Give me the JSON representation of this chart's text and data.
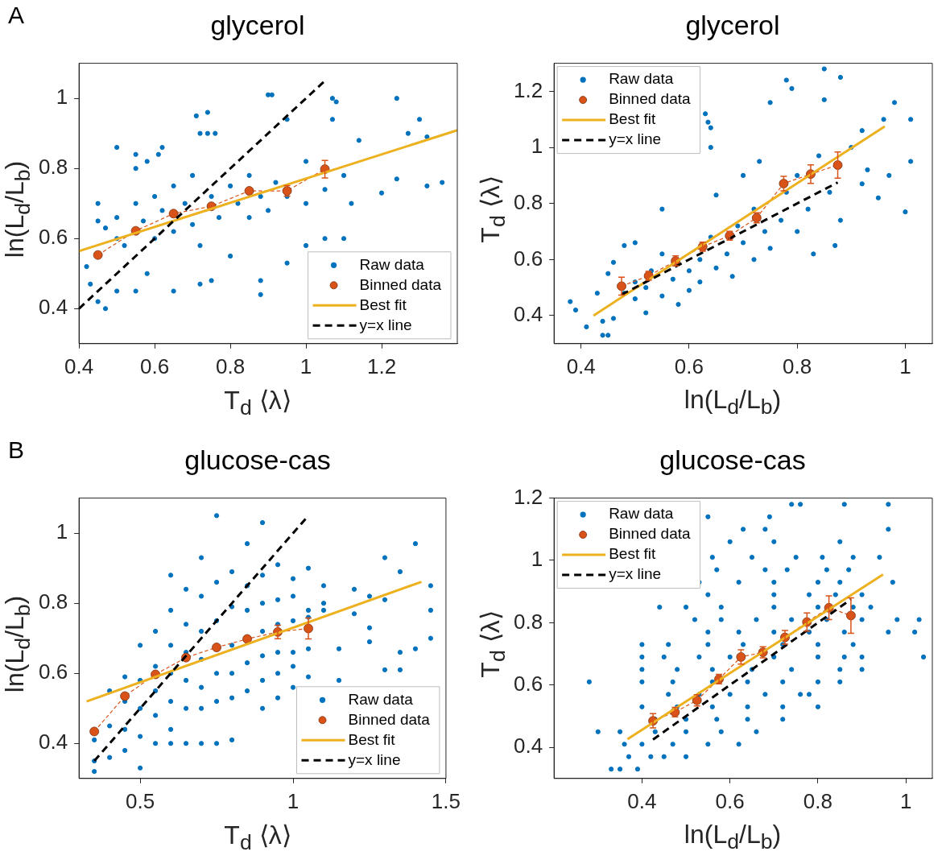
{
  "chart_data": [
    {
      "type": "scatter",
      "title": "glycerol",
      "xlabel": "T$_{d}$ ⟨λ⟩",
      "ylabel": "ln(L$_{d}$/L$_{b}$)",
      "xlim": [
        0.4,
        1.4
      ],
      "ylim": [
        0.3,
        1.1
      ],
      "xticks": [
        0.4,
        0.6,
        0.8,
        1,
        1.2
      ],
      "yticks": [
        0.4,
        0.6,
        0.8,
        1
      ],
      "legend": "bottom right",
      "annotations": [
        "A"
      ],
      "series": [
        {
          "name": "Raw data",
          "type": "scatter",
          "color": "#0072bd",
          "marker": "circle",
          "x": [
            0.9,
            0.91,
            1.07,
            1.08,
            1.24,
            0.71,
            0.74,
            0.95,
            1.07,
            1.3,
            1.14,
            1.32,
            1.27,
            1.36,
            1.32,
            1.24,
            0.72,
            0.74,
            0.76,
            0.62,
            0.61,
            0.55,
            0.55,
            0.5,
            0.58,
            0.45,
            0.45,
            0.47,
            0.5,
            0.5,
            0.52,
            0.55,
            0.57,
            0.6,
            0.6,
            0.62,
            0.65,
            0.65,
            0.68,
            0.7,
            0.7,
            0.72,
            0.75,
            0.77,
            0.8,
            0.82,
            0.85,
            0.85,
            0.88,
            0.9,
            0.92,
            0.95,
            1.0,
            1.0,
            1.05,
            1.1,
            1.12,
            1.2,
            0.42,
            0.43,
            0.45,
            0.47,
            0.5,
            0.55,
            0.58,
            0.65,
            0.72,
            0.75,
            0.8,
            0.88,
            0.88,
            0.95,
            1.05,
            1.1,
            1.0
          ],
          "values": [
            1.01,
            1.01,
            1.0,
            0.99,
            1.0,
            0.95,
            0.96,
            0.94,
            0.94,
            0.94,
            0.88,
            0.89,
            0.9,
            0.76,
            0.75,
            0.77,
            0.9,
            0.9,
            0.9,
            0.86,
            0.84,
            0.8,
            0.84,
            0.86,
            0.82,
            0.7,
            0.65,
            0.63,
            0.66,
            0.6,
            0.58,
            0.7,
            0.65,
            0.72,
            0.6,
            0.68,
            0.75,
            0.62,
            0.7,
            0.78,
            0.64,
            0.58,
            0.72,
            0.66,
            0.75,
            0.7,
            0.78,
            0.66,
            0.72,
            0.68,
            0.76,
            0.72,
            0.82,
            0.7,
            0.74,
            0.78,
            0.7,
            0.73,
            0.52,
            0.47,
            0.42,
            0.4,
            0.45,
            0.45,
            0.5,
            0.45,
            0.47,
            0.48,
            0.55,
            0.48,
            0.44,
            0.53,
            0.6,
            0.6,
            0.58
          ]
        },
        {
          "name": "Binned data",
          "type": "line",
          "color": "#d95319",
          "marker": "circle",
          "line_style": "dashed",
          "x": [
            0.45,
            0.55,
            0.65,
            0.75,
            0.85,
            0.95,
            1.05
          ],
          "values": [
            0.553,
            0.622,
            0.671,
            0.692,
            0.736,
            0.736,
            0.798
          ],
          "errors": [
            null,
            null,
            null,
            null,
            null,
            0.015,
            0.025
          ]
        },
        {
          "name": "Best fit",
          "type": "line",
          "color": "#edb120",
          "marker": "none",
          "line_style": "solid",
          "x": [
            0.4,
            1.4
          ],
          "values": [
            0.564,
            0.909
          ]
        },
        {
          "name": "y=x line",
          "type": "line",
          "color": "#000000",
          "marker": "none",
          "line_style": "dashed",
          "x": [
            0.4,
            1.05
          ],
          "values": [
            0.4,
            1.05
          ]
        }
      ]
    },
    {
      "type": "scatter",
      "title": "glycerol",
      "xlabel": "ln(L$_{d}$/L$_{b}$)",
      "ylabel": "T$_{d}$ ⟨λ⟩",
      "xlim": [
        0.35,
        1.05
      ],
      "ylim": [
        0.3,
        1.3
      ],
      "xticks": [
        0.4,
        0.6,
        0.8,
        1
      ],
      "yticks": [
        0.4,
        0.6,
        0.8,
        1,
        1.2
      ],
      "legend": "top left",
      "series": [
        {
          "name": "Raw data",
          "type": "scatter",
          "color": "#0072bd",
          "marker": "circle",
          "x": [
            0.38,
            0.39,
            0.41,
            0.44,
            0.45,
            0.44,
            0.46,
            0.43,
            0.45,
            0.46,
            0.48,
            0.5,
            0.5,
            0.52,
            0.52,
            0.53,
            0.55,
            0.55,
            0.57,
            0.58,
            0.6,
            0.6,
            0.62,
            0.62,
            0.64,
            0.65,
            0.67,
            0.68,
            0.69,
            0.7,
            0.72,
            0.72,
            0.74,
            0.75,
            0.77,
            0.78,
            0.8,
            0.8,
            0.82,
            0.83,
            0.84,
            0.86,
            0.88,
            0.9,
            0.92,
            0.93,
            0.95,
            0.96,
            0.98,
            1.01,
            1.0,
            0.85,
            0.88,
            0.78,
            0.79,
            0.75,
            0.63,
            0.635,
            0.64,
            0.64,
            0.5,
            0.48,
            0.55,
            0.65,
            0.7,
            0.73,
            0.85,
            0.97,
            1.01,
            0.92,
            0.87
          ],
          "values": [
            0.45,
            0.42,
            0.36,
            0.33,
            0.33,
            0.38,
            0.39,
            0.48,
            0.55,
            0.59,
            0.48,
            0.46,
            0.52,
            0.41,
            0.5,
            0.56,
            0.62,
            0.47,
            0.53,
            0.44,
            0.49,
            0.56,
            0.6,
            0.52,
            0.68,
            0.57,
            0.62,
            0.54,
            0.72,
            0.66,
            0.6,
            0.78,
            0.7,
            0.64,
            0.74,
            0.84,
            0.7,
            0.9,
            0.78,
            0.62,
            0.97,
            0.84,
            0.74,
            1.0,
            1.06,
            0.92,
            0.82,
            1.1,
            1.16,
            1.1,
            0.77,
            1.28,
            1.25,
            1.24,
            1.21,
            1.16,
            1.12,
            1.09,
            1.07,
            1.0,
            0.66,
            0.65,
            0.78,
            0.83,
            0.9,
            0.95,
            1.17,
            0.9,
            0.95,
            0.87,
            0.65
          ]
        },
        {
          "name": "Binned data",
          "type": "line",
          "color": "#d95319",
          "marker": "circle",
          "line_style": "dashed",
          "x": [
            0.475,
            0.525,
            0.575,
            0.625,
            0.675,
            0.725,
            0.775,
            0.825,
            0.875
          ],
          "values": [
            0.505,
            0.542,
            0.595,
            0.646,
            0.685,
            0.749,
            0.871,
            0.905,
            0.937
          ],
          "errors": [
            0.032,
            0.016,
            0.018,
            0.016,
            0.016,
            0.018,
            0.026,
            0.033,
            0.047
          ]
        },
        {
          "name": "Best fit",
          "type": "line",
          "color": "#edb120",
          "marker": "none",
          "line_style": "solid",
          "x": [
            0.423,
            0.962
          ],
          "values": [
            0.4,
            1.075
          ]
        },
        {
          "name": "y=x line",
          "type": "line",
          "color": "#000000",
          "marker": "none",
          "line_style": "dashed",
          "x": [
            0.475,
            0.875
          ],
          "values": [
            0.475,
            0.875
          ]
        }
      ]
    },
    {
      "type": "scatter",
      "title": "glucose-cas",
      "xlabel": "T$_{d}$ ⟨λ⟩",
      "ylabel": "ln(L$_{d}$/L$_{b}$)",
      "xlim": [
        0.3,
        1.5
      ],
      "ylim": [
        0.3,
        1.1
      ],
      "xticks": [
        0.5,
        1,
        1.5
      ],
      "yticks": [
        0.4,
        0.6,
        0.8,
        1
      ],
      "legend": "bottom right",
      "annotations": [
        "B"
      ],
      "series": [
        {
          "name": "Raw data",
          "type": "scatter",
          "color": "#0072bd",
          "marker": "circle",
          "x": [
            0.35,
            0.35,
            0.35,
            0.4,
            0.4,
            0.4,
            0.45,
            0.45,
            0.45,
            0.45,
            0.5,
            0.5,
            0.5,
            0.5,
            0.5,
            0.55,
            0.55,
            0.55,
            0.55,
            0.55,
            0.6,
            0.6,
            0.6,
            0.6,
            0.6,
            0.6,
            0.6,
            0.65,
            0.65,
            0.65,
            0.65,
            0.65,
            0.65,
            0.7,
            0.7,
            0.7,
            0.7,
            0.7,
            0.7,
            0.7,
            0.75,
            0.75,
            0.75,
            0.75,
            0.75,
            0.75,
            0.8,
            0.8,
            0.8,
            0.8,
            0.8,
            0.8,
            0.85,
            0.85,
            0.85,
            0.85,
            0.85,
            0.9,
            0.9,
            0.9,
            0.9,
            0.9,
            0.9,
            0.9,
            0.95,
            0.95,
            0.95,
            0.95,
            0.95,
            0.95,
            1.0,
            1.0,
            1.0,
            1.0,
            1.0,
            1.0,
            1.05,
            1.05,
            1.05,
            1.05,
            1.05,
            1.1,
            1.1,
            1.1,
            1.15,
            1.15,
            1.2,
            1.2,
            1.25,
            1.25,
            1.25,
            1.3,
            1.3,
            1.3,
            1.35,
            1.35,
            1.35,
            1.4,
            1.4,
            1.45,
            1.45,
            1.45
          ],
          "values": [
            0.32,
            0.35,
            0.41,
            0.36,
            0.45,
            0.55,
            0.38,
            0.44,
            0.52,
            0.59,
            0.33,
            0.42,
            0.5,
            0.58,
            0.68,
            0.4,
            0.48,
            0.55,
            0.62,
            0.72,
            0.4,
            0.44,
            0.52,
            0.6,
            0.68,
            0.78,
            0.88,
            0.4,
            0.5,
            0.58,
            0.66,
            0.74,
            0.84,
            0.4,
            0.5,
            0.56,
            0.64,
            0.72,
            0.82,
            0.93,
            0.4,
            0.52,
            0.6,
            0.75,
            0.86,
            1.05,
            0.41,
            0.53,
            0.6,
            0.68,
            0.79,
            0.89,
            0.55,
            0.63,
            0.78,
            0.85,
            0.97,
            0.5,
            0.58,
            0.65,
            0.72,
            0.8,
            0.88,
            1.03,
            0.53,
            0.6,
            0.66,
            0.74,
            0.81,
            0.91,
            0.56,
            0.62,
            0.66,
            0.75,
            0.82,
            0.87,
            0.59,
            0.67,
            0.76,
            0.78,
            0.9,
            0.78,
            0.8,
            0.85,
            0.58,
            0.67,
            0.84,
            0.77,
            0.69,
            0.73,
            0.82,
            0.61,
            0.81,
            0.93,
            0.61,
            0.66,
            0.89,
            0.67,
            0.97,
            0.7,
            0.78,
            0.85
          ]
        },
        {
          "name": "Binned data",
          "type": "line",
          "color": "#d95319",
          "marker": "circle",
          "line_style": "dashed",
          "x": [
            0.35,
            0.45,
            0.55,
            0.65,
            0.75,
            0.85,
            0.95,
            1.05
          ],
          "values": [
            0.434,
            0.535,
            0.597,
            0.645,
            0.674,
            0.698,
            0.718,
            0.728
          ],
          "errors": [
            null,
            null,
            null,
            null,
            null,
            null,
            0.019,
            0.03
          ]
        },
        {
          "name": "Best fit",
          "type": "line",
          "color": "#edb120",
          "marker": "none",
          "line_style": "solid",
          "x": [
            0.325,
            1.42
          ],
          "values": [
            0.52,
            0.861
          ]
        },
        {
          "name": "y=x line",
          "type": "line",
          "color": "#000000",
          "marker": "none",
          "line_style": "dashed",
          "x": [
            0.35,
            1.05
          ],
          "values": [
            0.35,
            1.05
          ]
        }
      ]
    },
    {
      "type": "scatter",
      "title": "glucose-cas",
      "xlabel": "ln(L$_{d}$/L$_{b}$)",
      "ylabel": "T$_{d}$ ⟨λ⟩",
      "xlim": [
        0.2,
        1.06
      ],
      "ylim": [
        0.3,
        1.2
      ],
      "xticks": [
        0.4,
        0.6,
        0.8,
        1
      ],
      "yticks": [
        0.4,
        0.6,
        0.8,
        1,
        1.2
      ],
      "legend": "top left",
      "series": [
        {
          "name": "Raw data",
          "type": "scatter",
          "color": "#0072bd",
          "marker": "circle",
          "x": [
            0.33,
            0.35,
            0.39,
            0.37,
            0.42,
            0.45,
            0.5,
            0.36,
            0.4,
            0.47,
            0.55,
            0.62,
            0.3,
            0.35,
            0.43,
            0.5,
            0.58,
            0.66,
            0.43,
            0.5,
            0.57,
            0.64,
            0.72,
            0.4,
            0.48,
            0.56,
            0.64,
            0.72,
            0.8,
            0.46,
            0.53,
            0.6,
            0.68,
            0.76,
            0.78,
            0.28,
            0.4,
            0.47,
            0.56,
            0.64,
            0.72,
            0.8,
            0.85,
            0.4,
            0.48,
            0.56,
            0.65,
            0.74,
            0.85,
            0.9,
            0.4,
            0.45,
            0.53,
            0.6,
            0.7,
            0.8,
            0.86,
            0.9,
            1.04,
            0.4,
            0.46,
            0.55,
            0.63,
            0.72,
            0.8,
            0.88,
            0.55,
            0.62,
            0.7,
            0.78,
            0.86,
            0.96,
            1.02,
            0.52,
            0.58,
            0.66,
            0.74,
            0.82,
            0.9,
            0.98,
            1.03,
            0.44,
            0.5,
            0.58,
            0.7,
            0.8,
            0.88,
            0.92,
            0.55,
            0.7,
            0.78,
            0.84,
            0.9,
            0.53,
            0.62,
            0.7,
            0.8,
            0.85,
            0.97,
            0.57,
            0.68,
            0.73,
            0.82,
            0.87,
            0.56,
            0.65,
            0.75,
            0.81,
            0.88,
            0.94,
            0.6,
            0.7,
            0.85,
            0.63,
            0.68,
            0.96,
            0.55,
            0.69,
            0.74,
            0.76,
            0.86,
            0.96
          ],
          "values": [
            0.33,
            0.33,
            0.33,
            0.37,
            0.37,
            0.37,
            0.37,
            0.41,
            0.41,
            0.41,
            0.41,
            0.41,
            0.45,
            0.45,
            0.45,
            0.45,
            0.45,
            0.45,
            0.49,
            0.49,
            0.49,
            0.49,
            0.49,
            0.53,
            0.53,
            0.53,
            0.53,
            0.53,
            0.53,
            0.57,
            0.57,
            0.57,
            0.57,
            0.57,
            0.57,
            0.61,
            0.61,
            0.61,
            0.61,
            0.61,
            0.61,
            0.61,
            0.61,
            0.65,
            0.65,
            0.65,
            0.65,
            0.65,
            0.65,
            0.65,
            0.69,
            0.69,
            0.69,
            0.69,
            0.69,
            0.69,
            0.69,
            0.69,
            0.69,
            0.73,
            0.73,
            0.73,
            0.73,
            0.73,
            0.73,
            0.73,
            0.77,
            0.77,
            0.77,
            0.77,
            0.77,
            0.77,
            0.77,
            0.81,
            0.81,
            0.81,
            0.81,
            0.81,
            0.81,
            0.81,
            0.81,
            0.85,
            0.85,
            0.85,
            0.85,
            0.85,
            0.85,
            0.85,
            0.89,
            0.89,
            0.89,
            0.89,
            0.89,
            0.93,
            0.93,
            0.93,
            0.93,
            0.93,
            0.93,
            0.97,
            0.97,
            0.97,
            0.97,
            0.97,
            1.01,
            1.01,
            1.01,
            1.01,
            1.01,
            1.01,
            1.06,
            1.06,
            1.06,
            1.1,
            1.1,
            1.1,
            1.14,
            1.14,
            1.18,
            1.18,
            1.18,
            1.18
          ]
        },
        {
          "name": "Binned data",
          "type": "line",
          "color": "#d95319",
          "marker": "circle",
          "line_style": "dashed",
          "x": [
            0.425,
            0.475,
            0.525,
            0.575,
            0.625,
            0.675,
            0.725,
            0.775,
            0.825,
            0.875
          ],
          "values": [
            0.485,
            0.513,
            0.551,
            0.619,
            0.69,
            0.705,
            0.753,
            0.802,
            0.848,
            0.823
          ],
          "errors": [
            0.023,
            0.015,
            0.018,
            0.015,
            0.023,
            0.018,
            0.022,
            0.029,
            0.038,
            0.057
          ]
        },
        {
          "name": "Best fit",
          "type": "line",
          "color": "#edb120",
          "marker": "none",
          "line_style": "solid",
          "x": [
            0.367,
            0.948
          ],
          "values": [
            0.426,
            0.955
          ]
        },
        {
          "name": "y=x line",
          "type": "line",
          "color": "#000000",
          "marker": "none",
          "line_style": "dashed",
          "x": [
            0.425,
            0.875
          ],
          "values": [
            0.425,
            0.875
          ]
        }
      ]
    }
  ]
}
